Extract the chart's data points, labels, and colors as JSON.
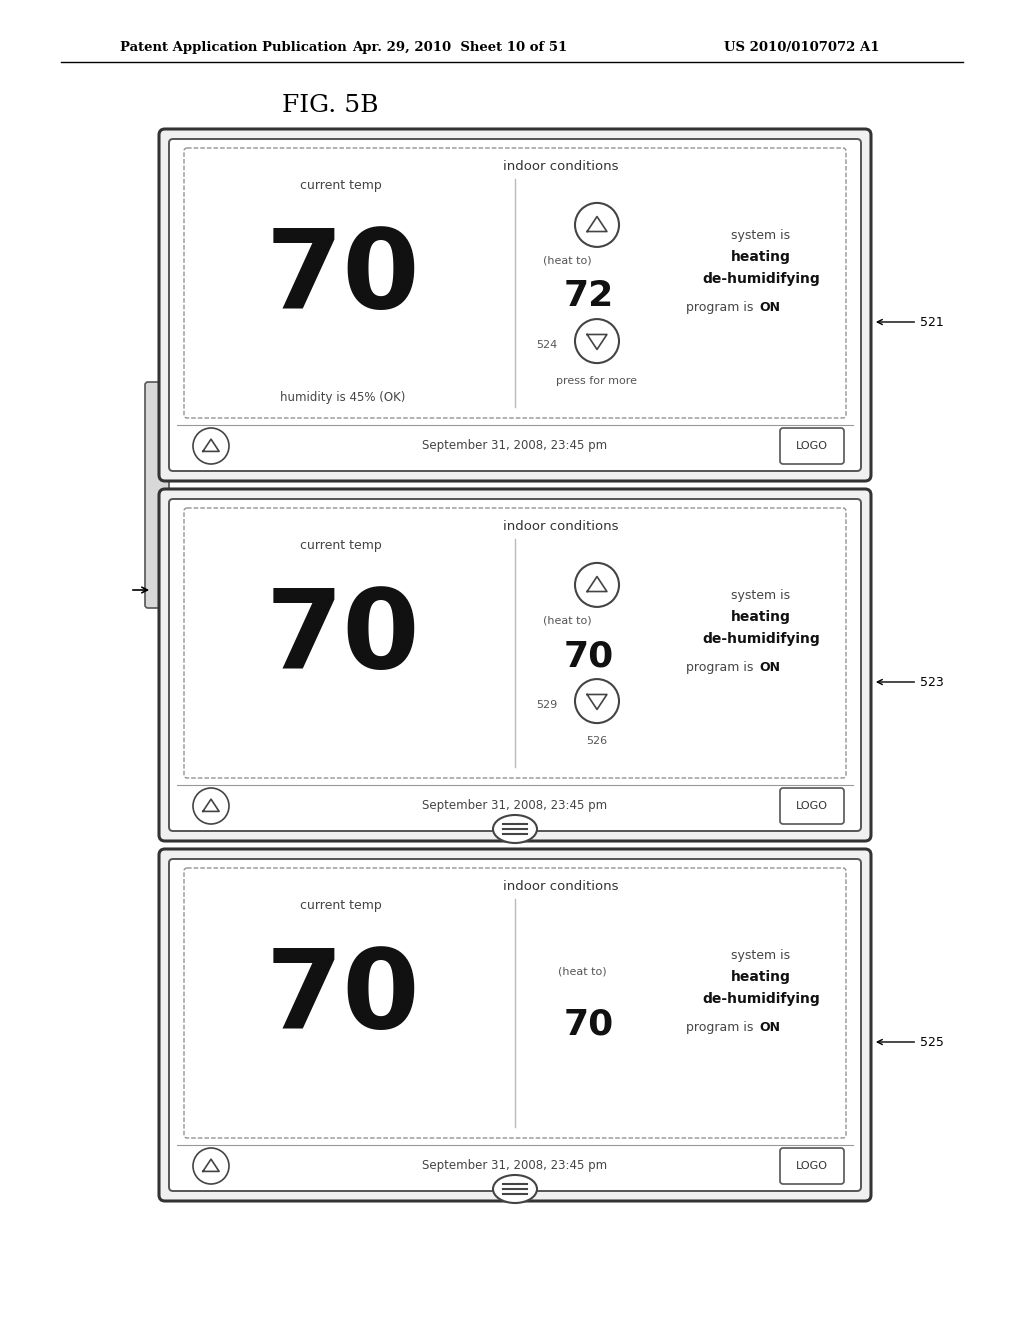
{
  "title_fig": "FIG. 5B",
  "header_left": "Patent Application Publication",
  "header_mid": "Apr. 29, 2010  Sheet 10 of 51",
  "header_right": "US 2010/0107072 A1",
  "bg_color": "#ffffff",
  "panels": [
    {
      "id": "521",
      "label": "521",
      "current_temp": "70",
      "humidity": "humidity is 45% (OK)",
      "heat_to_label": "(heat to)",
      "heat_to_val": "72",
      "has_up_btn": true,
      "has_down_btn": true,
      "down_label": "524",
      "extra_text": "press for more",
      "show_extra_label": true,
      "status_line1": "system is",
      "status_line2": "heating",
      "status_line3": "de-humidifying",
      "status_line4": "program is ",
      "status_line4b": "ON",
      "bottom_center": "none",
      "date_text": "September 31, 2008, 23:45 pm"
    },
    {
      "id": "523",
      "label": "523",
      "current_temp": "70",
      "humidity": "",
      "heat_to_label": "(heat to)",
      "heat_to_val": "70",
      "has_up_btn": true,
      "has_down_btn": true,
      "down_label": "529",
      "extra_text": "526",
      "show_extra_label": true,
      "status_line1": "system is",
      "status_line2": "heating",
      "status_line3": "de-humidifying",
      "status_line4": "program is ",
      "status_line4b": "ON",
      "bottom_center": "menu_icon",
      "date_text": "September 31, 2008, 23:45 pm"
    },
    {
      "id": "525",
      "label": "525",
      "current_temp": "70",
      "humidity": "",
      "heat_to_label": "(heat to)",
      "heat_to_val": "70",
      "has_up_btn": false,
      "has_down_btn": false,
      "down_label": "",
      "extra_text": "",
      "show_extra_label": false,
      "status_line1": "system is",
      "status_line2": "heating",
      "status_line3": "de-humidifying",
      "status_line4": "program is ",
      "status_line4b": "ON",
      "bottom_center": "menu_icon",
      "date_text": "September 31, 2008, 23:45 pm"
    }
  ]
}
